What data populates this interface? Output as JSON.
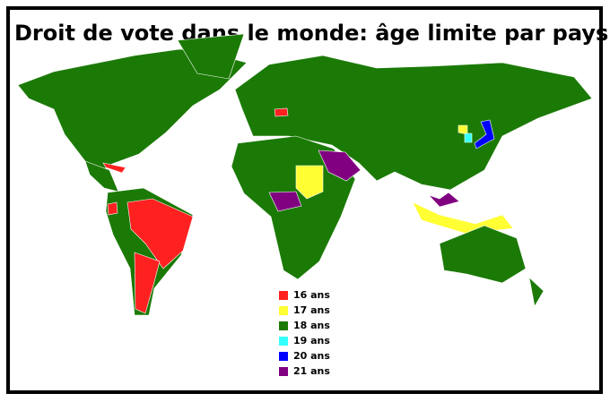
{
  "title": "Droit de vote dans le monde: âge limite par pays",
  "legend": [
    {
      "label": "16 ans",
      "color": "#ff2020"
    },
    {
      "label": "17 ans",
      "color": "#ffff33"
    },
    {
      "label": "18 ans",
      "color": "#1b7a06"
    },
    {
      "label": "19 ans",
      "color": "#33ffff"
    },
    {
      "label": "20 ans",
      "color": "#0000ff"
    },
    {
      "label": "21 ans",
      "color": "#800080"
    }
  ]
}
